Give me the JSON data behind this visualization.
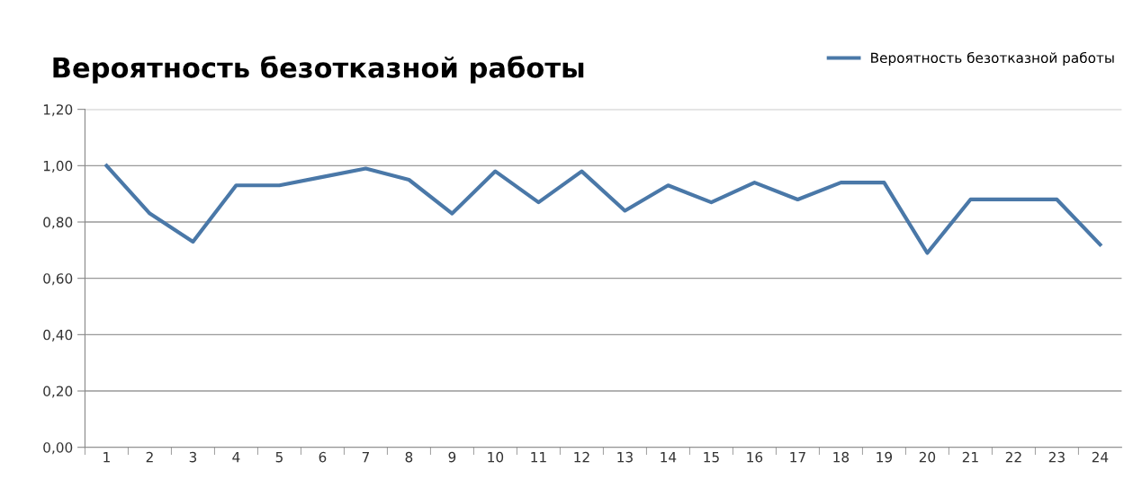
{
  "chart_data": {
    "type": "line",
    "title": "Вероятность безотказной работы",
    "categories": [
      "1",
      "2",
      "3",
      "4",
      "5",
      "6",
      "7",
      "8",
      "9",
      "10",
      "11",
      "12",
      "13",
      "14",
      "15",
      "16",
      "17",
      "18",
      "19",
      "20",
      "21",
      "22",
      "23",
      "24"
    ],
    "series": [
      {
        "name": "Вероятность безотказной работы",
        "color": "#4a78a8",
        "values": [
          1.0,
          0.83,
          0.73,
          0.93,
          0.93,
          0.96,
          0.99,
          0.95,
          0.83,
          0.98,
          0.87,
          0.98,
          0.84,
          0.93,
          0.87,
          0.94,
          0.88,
          0.94,
          0.94,
          0.69,
          0.88,
          0.88,
          0.88,
          0.72
        ]
      }
    ],
    "ylim": [
      0,
      1.2
    ],
    "yticks": [
      {
        "value": 0,
        "label": "0,00"
      },
      {
        "value": 0.2,
        "label": "0,20"
      },
      {
        "value": 0.4,
        "label": "0,40"
      },
      {
        "value": 0.6,
        "label": "0,60"
      },
      {
        "value": 0.8,
        "label": "0,80"
      },
      {
        "value": 1.0,
        "label": "1,00"
      },
      {
        "value": 1.2,
        "label": "1,20"
      }
    ],
    "grid": "y",
    "legend": "top right",
    "marker": "none",
    "line_style": "solid"
  }
}
